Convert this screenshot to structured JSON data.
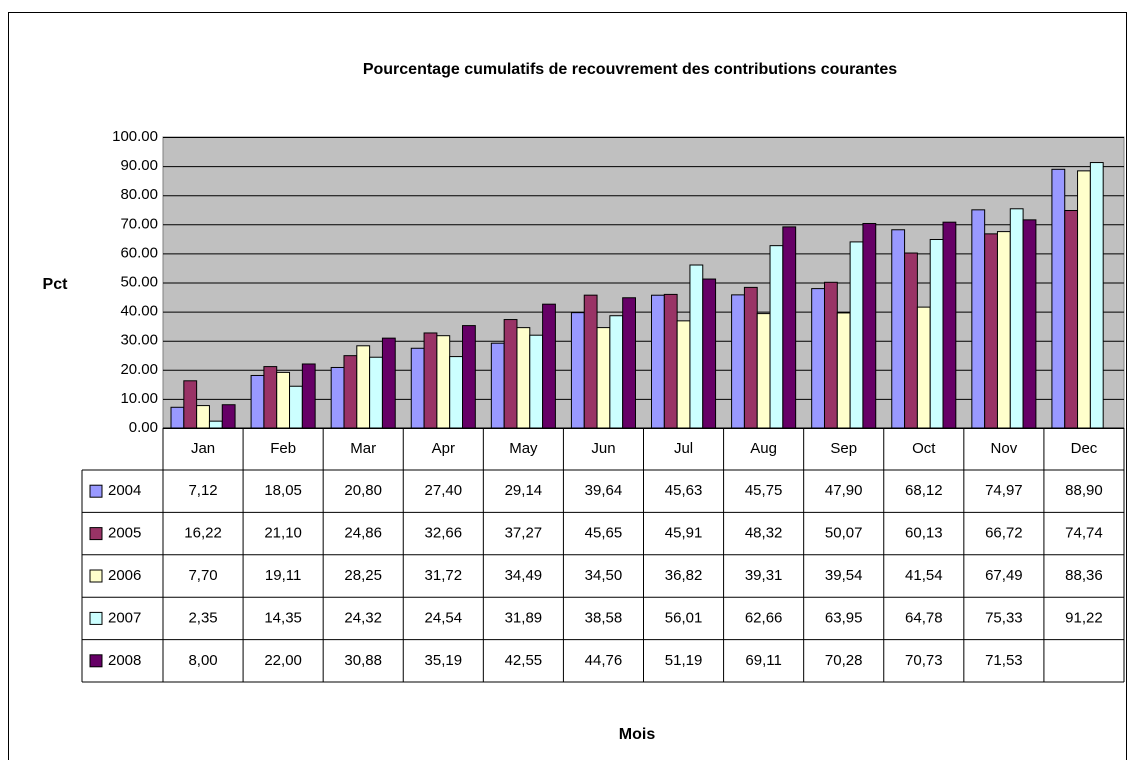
{
  "chart_data": {
    "type": "bar",
    "title": "Pourcentage cumulatifs de recouvrement des contributions courantes",
    "y_label": "Pct",
    "x_label": "Mois",
    "categories": [
      "Jan",
      "Feb",
      "Mar",
      "Apr",
      "May",
      "Jun",
      "Jul",
      "Aug",
      "Sep",
      "Oct",
      "Nov",
      "Dec"
    ],
    "series": [
      {
        "name": "2004",
        "color": "#9999ff",
        "values": [
          7.12,
          18.05,
          20.8,
          27.4,
          29.14,
          39.64,
          45.63,
          45.75,
          47.9,
          68.12,
          74.97,
          88.9
        ],
        "value_labels": [
          "7,12",
          "18,05",
          "20,80",
          "27,40",
          "29,14",
          "39,64",
          "45,63",
          "45,75",
          "47,90",
          "68,12",
          "74,97",
          "88,90"
        ]
      },
      {
        "name": "2005",
        "color": "#993366",
        "values": [
          16.22,
          21.1,
          24.86,
          32.66,
          37.27,
          45.65,
          45.91,
          48.32,
          50.07,
          60.13,
          66.72,
          74.74
        ],
        "value_labels": [
          "16,22",
          "21,10",
          "24,86",
          "32,66",
          "37,27",
          "45,65",
          "45,91",
          "48,32",
          "50,07",
          "60,13",
          "66,72",
          "74,74"
        ]
      },
      {
        "name": "2006",
        "color": "#ffffcc",
        "values": [
          7.7,
          19.11,
          28.25,
          31.72,
          34.49,
          34.5,
          36.82,
          39.31,
          39.54,
          41.54,
          67.49,
          88.36
        ],
        "value_labels": [
          "7,70",
          "19,11",
          "28,25",
          "31,72",
          "34,49",
          "34,50",
          "36,82",
          "39,31",
          "39,54",
          "41,54",
          "67,49",
          "88,36"
        ]
      },
      {
        "name": "2007",
        "color": "#ccffff",
        "values": [
          2.35,
          14.35,
          24.32,
          24.54,
          31.89,
          38.58,
          56.01,
          62.66,
          63.95,
          64.78,
          75.33,
          91.22
        ],
        "value_labels": [
          "2,35",
          "14,35",
          "24,32",
          "24,54",
          "31,89",
          "38,58",
          "56,01",
          "62,66",
          "63,95",
          "64,78",
          "75,33",
          "91,22"
        ]
      },
      {
        "name": "2008",
        "color": "#660066",
        "values": [
          8.0,
          22.0,
          30.88,
          35.19,
          42.55,
          44.76,
          51.19,
          69.11,
          70.28,
          70.73,
          71.53,
          null
        ],
        "value_labels": [
          "8,00",
          "22,00",
          "30,88",
          "35,19",
          "42,55",
          "44,76",
          "51,19",
          "69,11",
          "70,28",
          "70,73",
          "71,53",
          null
        ]
      }
    ],
    "ylim": [
      0,
      100
    ],
    "yticks": [
      {
        "value": 0,
        "label": "0.00"
      },
      {
        "value": 10,
        "label": "10.00"
      },
      {
        "value": 20,
        "label": "20.00"
      },
      {
        "value": 30,
        "label": "30.00"
      },
      {
        "value": 40,
        "label": "40.00"
      },
      {
        "value": 50,
        "label": "50.00"
      },
      {
        "value": 60,
        "label": "60.00"
      },
      {
        "value": 70,
        "label": "70.00"
      },
      {
        "value": 80,
        "label": "80.00"
      },
      {
        "value": 90,
        "label": "90.00"
      },
      {
        "value": 100,
        "label": "100.00"
      }
    ],
    "grid": true
  }
}
